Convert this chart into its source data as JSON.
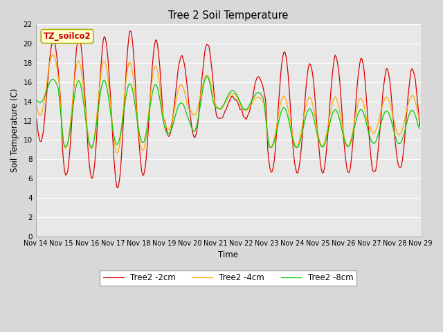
{
  "title": "Tree 2 Soil Temperature",
  "xlabel": "Time",
  "ylabel": "Soil Temperature (C)",
  "annotation": "TZ_soilco2",
  "ylim": [
    0,
    22
  ],
  "yticks": [
    0,
    2,
    4,
    6,
    8,
    10,
    12,
    14,
    16,
    18,
    20,
    22
  ],
  "xtick_labels": [
    "Nov 14",
    "Nov 15",
    "Nov 16",
    "Nov 17",
    "Nov 18",
    "Nov 19",
    "Nov 20",
    "Nov 21",
    "Nov 22",
    "Nov 23",
    "Nov 24",
    "Nov 25",
    "Nov 26",
    "Nov 27",
    "Nov 28",
    "Nov 29"
  ],
  "legend_labels": [
    "Tree2 -2cm",
    "Tree2 -4cm",
    "Tree2 -8cm"
  ],
  "line_colors": [
    "#dd0000",
    "#ffaa00",
    "#00cc00"
  ],
  "bg_color": "#d8d8d8",
  "plot_bg_color": "#e8e8e8",
  "annotation_bg": "#ffffcc",
  "annotation_border": "#aaaa00",
  "annotation_text_color": "#cc0000"
}
